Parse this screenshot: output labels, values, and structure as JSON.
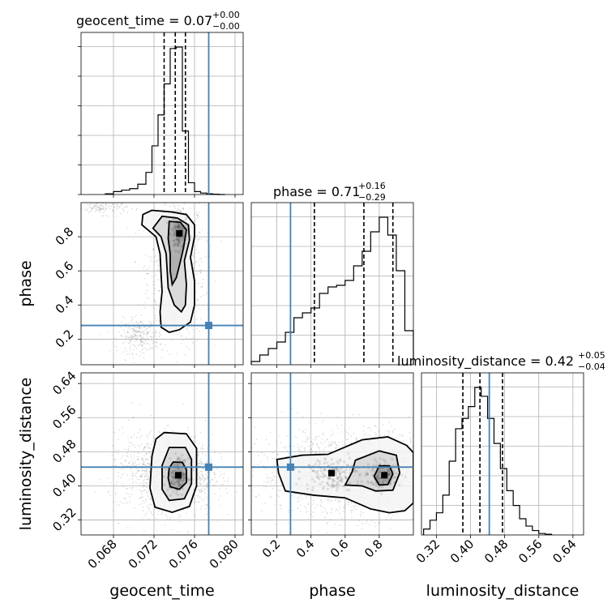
{
  "chart_data": {
    "type": "corner",
    "parameters": [
      "geocent_time",
      "phase",
      "luminosity_distance"
    ],
    "axis_labels": {
      "geocent_time": "geocent_time",
      "phase": "phase",
      "luminosity_distance": "luminosity_distance"
    },
    "colors": {
      "truth": "#4682b4",
      "hist": "#000000",
      "grid": "#b0b0b0",
      "scatter": "#808080"
    },
    "titles": [
      {
        "param": "geocent_time",
        "text": "geocent_time = 0.07",
        "plus": "+0.00",
        "minus": "−0.00"
      },
      {
        "param": "phase",
        "text": "phase = 0.71",
        "plus": "+0.16",
        "minus": "−0.29"
      },
      {
        "param": "luminosity_distance",
        "text": "luminosity_distance = 0.42",
        "plus": "+0.05",
        "minus": "−0.04"
      }
    ],
    "ranges": {
      "geocent_time": [
        0.0648,
        0.0808
      ],
      "phase": [
        0.05,
        1.0
      ],
      "luminosity_distance": [
        0.285,
        0.665
      ]
    },
    "ticks": {
      "geocent_time": {
        "values": [
          0.068,
          0.072,
          0.076,
          0.08
        ],
        "labels": [
          "0.068",
          "0.072",
          "0.076",
          "0.080"
        ]
      },
      "phase": {
        "values": [
          0.2,
          0.4,
          0.6,
          0.8
        ],
        "labels": [
          "0.2",
          "0.4",
          "0.6",
          "0.8"
        ]
      },
      "luminosity_distance": {
        "values": [
          0.32,
          0.4,
          0.48,
          0.56,
          0.64
        ],
        "labels": [
          "0.32",
          "0.40",
          "0.48",
          "0.56",
          "0.64"
        ]
      }
    },
    "truths": {
      "geocent_time": 0.0774,
      "phase": 0.28,
      "luminosity_distance": 0.444
    },
    "quantiles": {
      "geocent_time": [
        0.073,
        0.0741,
        0.0751
      ],
      "phase": [
        0.42,
        0.71,
        0.88
      ],
      "luminosity_distance": [
        0.382,
        0.422,
        0.475
      ]
    },
    "histograms": {
      "geocent_time": {
        "edges": [
          0.0672,
          0.068,
          0.0688,
          0.0696,
          0.0704,
          0.0712,
          0.0718,
          0.0724,
          0.073,
          0.0736,
          0.0742,
          0.0748,
          0.0754,
          0.076,
          0.0766,
          0.0772,
          0.0778,
          0.0784,
          0.079
        ],
        "counts": [
          0.005,
          0.02,
          0.03,
          0.04,
          0.07,
          0.15,
          0.33,
          0.54,
          0.75,
          0.99,
          1.0,
          0.43,
          0.08,
          0.02,
          0.01,
          0.005,
          0.002,
          0.0
        ]
      },
      "phase": {
        "edges": [
          0.05,
          0.1,
          0.15,
          0.2,
          0.25,
          0.3,
          0.35,
          0.4,
          0.45,
          0.5,
          0.55,
          0.6,
          0.65,
          0.7,
          0.75,
          0.8,
          0.85,
          0.9,
          0.95,
          1.0
        ],
        "counts": [
          0.02,
          0.06,
          0.1,
          0.14,
          0.2,
          0.29,
          0.32,
          0.35,
          0.44,
          0.48,
          0.49,
          0.52,
          0.61,
          0.7,
          0.82,
          0.91,
          0.8,
          0.58,
          0.21
        ]
      },
      "luminosity_distance": {
        "edges": [
          0.29,
          0.305,
          0.32,
          0.335,
          0.35,
          0.365,
          0.38,
          0.395,
          0.41,
          0.425,
          0.44,
          0.455,
          0.47,
          0.485,
          0.5,
          0.515,
          0.53,
          0.545,
          0.56,
          0.575,
          0.59
        ],
        "counts": [
          0.04,
          0.1,
          0.15,
          0.27,
          0.5,
          0.72,
          0.79,
          0.87,
          1.0,
          0.94,
          0.79,
          0.62,
          0.45,
          0.3,
          0.2,
          0.11,
          0.06,
          0.03,
          0.01,
          0.005
        ]
      }
    },
    "density": {
      "phase_vs_geocent_time": {
        "modes": [
          {
            "x": 0.0745,
            "y": 0.82,
            "sx": 0.0004,
            "sy": 0.05
          }
        ],
        "contours": [
          [
            [
              0.0735,
              0.89
            ],
            [
              0.0746,
              0.885
            ],
            [
              0.0752,
              0.84
            ],
            [
              0.0749,
              0.73
            ],
            [
              0.0745,
              0.63
            ],
            [
              0.0742,
              0.56
            ],
            [
              0.0738,
              0.52
            ],
            [
              0.0736,
              0.6
            ],
            [
              0.0736,
              0.7
            ],
            [
              0.0734,
              0.79
            ]
          ],
          [
            [
              0.0728,
              0.92
            ],
            [
              0.0743,
              0.91
            ],
            [
              0.0754,
              0.87
            ],
            [
              0.0755,
              0.78
            ],
            [
              0.075,
              0.66
            ],
            [
              0.0752,
              0.52
            ],
            [
              0.0751,
              0.4
            ],
            [
              0.0747,
              0.36
            ],
            [
              0.074,
              0.4
            ],
            [
              0.0734,
              0.5
            ],
            [
              0.0733,
              0.6
            ],
            [
              0.0732,
              0.7
            ],
            [
              0.0727,
              0.8
            ],
            [
              0.0719,
              0.85
            ]
          ],
          [
            [
              0.0718,
              0.955
            ],
            [
              0.0738,
              0.945
            ],
            [
              0.0752,
              0.93
            ],
            [
              0.076,
              0.87
            ],
            [
              0.076,
              0.8
            ],
            [
              0.0756,
              0.68
            ],
            [
              0.076,
              0.54
            ],
            [
              0.076,
              0.4
            ],
            [
              0.0756,
              0.3
            ],
            [
              0.0745,
              0.255
            ],
            [
              0.0735,
              0.24
            ],
            [
              0.0727,
              0.27
            ],
            [
              0.0726,
              0.36
            ],
            [
              0.0728,
              0.48
            ],
            [
              0.0727,
              0.58
            ],
            [
              0.0726,
              0.7
            ],
            [
              0.0722,
              0.8
            ],
            [
              0.0708,
              0.87
            ],
            [
              0.0709,
              0.93
            ]
          ]
        ],
        "scatter_regions": [
          {
            "x": 0.0742,
            "y": 0.6,
            "sx": 0.0014,
            "sy": 0.22,
            "n": 900
          },
          {
            "x": 0.0705,
            "y": 0.22,
            "sx": 0.001,
            "sy": 0.05,
            "n": 250
          },
          {
            "x": 0.067,
            "y": 0.97,
            "sx": 0.0012,
            "sy": 0.02,
            "n": 120
          }
        ]
      },
      "luminosity_distance_vs_geocent_time": {
        "modes": [
          {
            "x": 0.0744,
            "y": 0.425,
            "sx": 0.0005,
            "sy": 0.02
          }
        ],
        "contours": [
          [
            [
              0.0739,
              0.456
            ],
            [
              0.0748,
              0.455
            ],
            [
              0.0752,
              0.438
            ],
            [
              0.0752,
              0.408
            ],
            [
              0.0745,
              0.392
            ],
            [
              0.0736,
              0.398
            ],
            [
              0.0734,
              0.418
            ],
            [
              0.0735,
              0.442
            ]
          ],
          [
            [
              0.0735,
              0.49
            ],
            [
              0.0751,
              0.49
            ],
            [
              0.0757,
              0.462
            ],
            [
              0.0757,
              0.405
            ],
            [
              0.075,
              0.37
            ],
            [
              0.0735,
              0.366
            ],
            [
              0.0728,
              0.392
            ],
            [
              0.0728,
              0.448
            ]
          ],
          [
            [
              0.073,
              0.525
            ],
            [
              0.0752,
              0.522
            ],
            [
              0.0762,
              0.488
            ],
            [
              0.0762,
              0.4
            ],
            [
              0.0755,
              0.352
            ],
            [
              0.0738,
              0.338
            ],
            [
              0.0721,
              0.35
            ],
            [
              0.0716,
              0.395
            ],
            [
              0.0718,
              0.47
            ],
            [
              0.0722,
              0.51
            ]
          ]
        ],
        "scatter_regions": [
          {
            "x": 0.0742,
            "y": 0.43,
            "sx": 0.0018,
            "sy": 0.045,
            "n": 1300
          },
          {
            "x": 0.0705,
            "y": 0.43,
            "sx": 0.0015,
            "sy": 0.05,
            "n": 250
          }
        ]
      },
      "luminosity_distance_vs_phase": {
        "modes": [
          {
            "x": 0.83,
            "y": 0.425,
            "sx": 0.05,
            "sy": 0.015
          },
          {
            "x": 0.52,
            "y": 0.43,
            "sx": 0.08,
            "sy": 0.02
          }
        ],
        "contours": [
          [
            [
              0.8,
              0.447
            ],
            [
              0.86,
              0.447
            ],
            [
              0.88,
              0.428
            ],
            [
              0.85,
              0.403
            ],
            [
              0.8,
              0.402
            ],
            [
              0.77,
              0.422
            ]
          ],
          [
            [
              0.66,
              0.46
            ],
            [
              0.8,
              0.482
            ],
            [
              0.9,
              0.472
            ],
            [
              0.92,
              0.43
            ],
            [
              0.88,
              0.39
            ],
            [
              0.78,
              0.388
            ],
            [
              0.7,
              0.4
            ],
            [
              0.6,
              0.402
            ],
            [
              0.64,
              0.432
            ]
          ],
          [
            [
              0.2,
              0.462
            ],
            [
              0.35,
              0.472
            ],
            [
              0.5,
              0.474
            ],
            [
              0.7,
              0.508
            ],
            [
              0.85,
              0.515
            ],
            [
              0.96,
              0.495
            ],
            [
              1.0,
              0.478
            ],
            [
              1.0,
              0.36
            ],
            [
              0.95,
              0.342
            ],
            [
              0.86,
              0.337
            ],
            [
              0.75,
              0.346
            ],
            [
              0.6,
              0.372
            ],
            [
              0.42,
              0.378
            ],
            [
              0.25,
              0.388
            ],
            [
              0.21,
              0.43
            ]
          ]
        ],
        "scatter_regions": [
          {
            "x": 0.6,
            "y": 0.43,
            "sx": 0.25,
            "sy": 0.05,
            "n": 1500
          },
          {
            "x": 0.85,
            "y": 0.43,
            "sx": 0.1,
            "sy": 0.04,
            "n": 500
          }
        ]
      }
    }
  }
}
